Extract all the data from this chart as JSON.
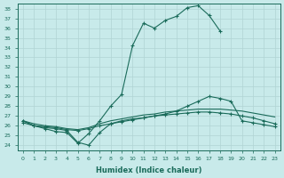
{
  "xlabel": "Humidex (Indice chaleur)",
  "xlim": [
    -0.5,
    23.5
  ],
  "ylim": [
    23.5,
    38.5
  ],
  "yticks": [
    24,
    25,
    26,
    27,
    28,
    29,
    30,
    31,
    32,
    33,
    34,
    35,
    36,
    37,
    38
  ],
  "xticks": [
    0,
    1,
    2,
    3,
    4,
    5,
    6,
    7,
    8,
    9,
    10,
    11,
    12,
    13,
    14,
    15,
    16,
    17,
    18,
    19,
    20,
    21,
    22,
    23
  ],
  "bg_color": "#c8eaea",
  "line_color": "#1a6b5a",
  "grid_color": "#b0d4d4",
  "line1_x": [
    0,
    1,
    2,
    3,
    4,
    5,
    6,
    7,
    8,
    9,
    10,
    11,
    12,
    13,
    14,
    15,
    16,
    17,
    18,
    19,
    20,
    21,
    22,
    23
  ],
  "line1_y": [
    26.5,
    26.0,
    25.8,
    25.7,
    25.5,
    24.3,
    24.0,
    25.3,
    26.2,
    26.5,
    26.7,
    26.8,
    27.0,
    27.1,
    27.2,
    27.3,
    27.4,
    27.4,
    27.3,
    27.2,
    27.0,
    26.8,
    26.5,
    26.2
  ],
  "line2_x": [
    0,
    1,
    2,
    3,
    4,
    5,
    6,
    7,
    8,
    9,
    10,
    11,
    12,
    13,
    14,
    15,
    16,
    17,
    18,
    19,
    20,
    21,
    22,
    23
  ],
  "line2_y": [
    26.5,
    26.2,
    26.0,
    25.9,
    25.7,
    25.6,
    25.8,
    26.2,
    26.5,
    26.7,
    26.9,
    27.1,
    27.2,
    27.4,
    27.5,
    27.6,
    27.7,
    27.7,
    27.7,
    27.6,
    27.5,
    27.3,
    27.1,
    26.9
  ],
  "line3_x": [
    0,
    1,
    2,
    3,
    4,
    5,
    6,
    7,
    8,
    9,
    10,
    11,
    12,
    13,
    14,
    15,
    16,
    17,
    18,
    19,
    20,
    21,
    22,
    23
  ],
  "line3_y": [
    26.3,
    26.0,
    25.9,
    25.8,
    25.6,
    25.5,
    25.7,
    26.0,
    26.2,
    26.4,
    26.6,
    26.8,
    27.0,
    27.2,
    27.5,
    28.0,
    28.5,
    29.0,
    28.8,
    28.5,
    26.5,
    26.3,
    26.1,
    25.9
  ],
  "line4_x": [
    0,
    1,
    2,
    3,
    4,
    5,
    6,
    7,
    8,
    9,
    10,
    11,
    12,
    13,
    14,
    15,
    16,
    17,
    18
  ],
  "line4_y": [
    26.5,
    26.0,
    25.7,
    25.4,
    25.3,
    24.2,
    25.2,
    26.5,
    28.0,
    29.2,
    34.2,
    36.5,
    36.0,
    36.8,
    37.2,
    38.1,
    38.3,
    37.3,
    35.7
  ]
}
